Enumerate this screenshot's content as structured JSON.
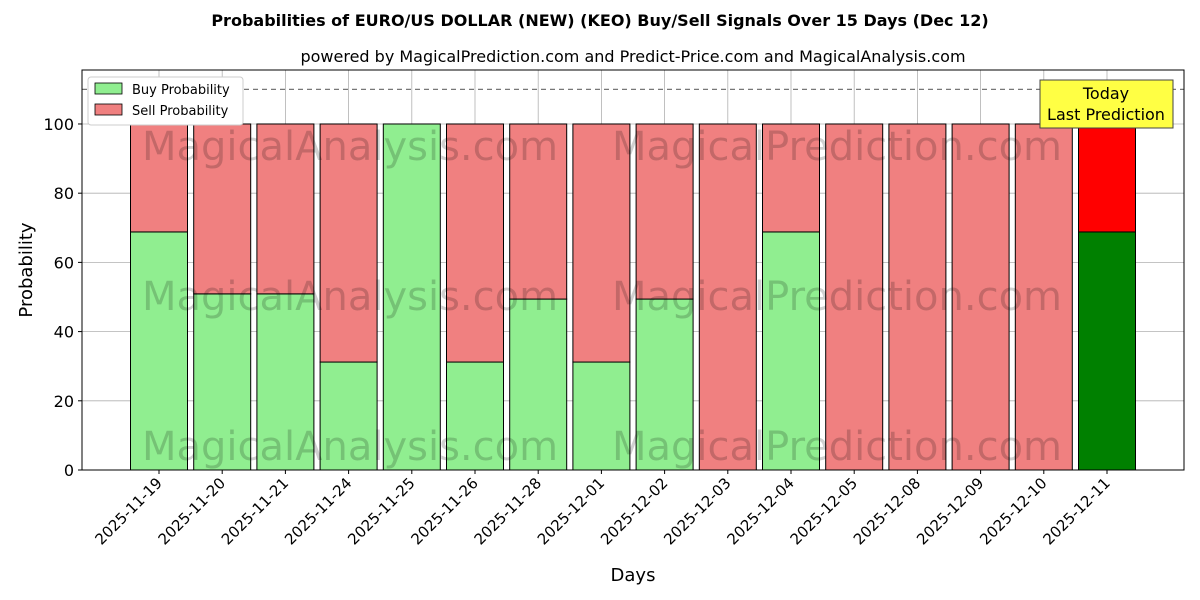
{
  "chart_data": {
    "type": "bar",
    "stacked": true,
    "title": "Probabilities of EURO/US DOLLAR (NEW) (KEO) Buy/Sell Signals Over 15 Days (Dec 12)",
    "subtitle": "powered by MagicalPrediction.com and Predict-Price.com and MagicalAnalysis.com",
    "xlabel": "Days",
    "ylabel": "Probability",
    "ylim": [
      0,
      115.6
    ],
    "yticks": [
      0,
      20,
      40,
      60,
      80,
      100
    ],
    "grid": true,
    "reference_line": 110,
    "categories": [
      "2025-11-19",
      "2025-11-20",
      "2025-11-21",
      "2025-11-24",
      "2025-11-25",
      "2025-11-26",
      "2025-11-28",
      "2025-12-01",
      "2025-12-02",
      "2025-12-03",
      "2025-12-04",
      "2025-12-05",
      "2025-12-08",
      "2025-12-09",
      "2025-12-10",
      "2025-12-11"
    ],
    "series": [
      {
        "name": "Buy Probability",
        "color": "#90ee90",
        "values": [
          68.8,
          50.9,
          50.9,
          31.2,
          100,
          31.2,
          49.4,
          31.2,
          49.4,
          0,
          68.8,
          0,
          0,
          0,
          0,
          68.8
        ]
      },
      {
        "name": "Sell Probability",
        "color": "#f08080",
        "values": [
          31.2,
          49.1,
          49.1,
          68.8,
          0,
          68.8,
          50.6,
          68.8,
          50.6,
          100,
          31.2,
          100,
          100,
          100,
          100,
          31.2
        ]
      }
    ],
    "highlight_colors": {
      "buy": "#008000",
      "sell": "#ff0000"
    },
    "legend": "top-left",
    "annotation": {
      "line1": "Today",
      "line2": "Last Prediction",
      "color": "#ffff44"
    },
    "watermarks": [
      "MagicalAnalysis.com",
      "MagicalPrediction.com"
    ]
  }
}
